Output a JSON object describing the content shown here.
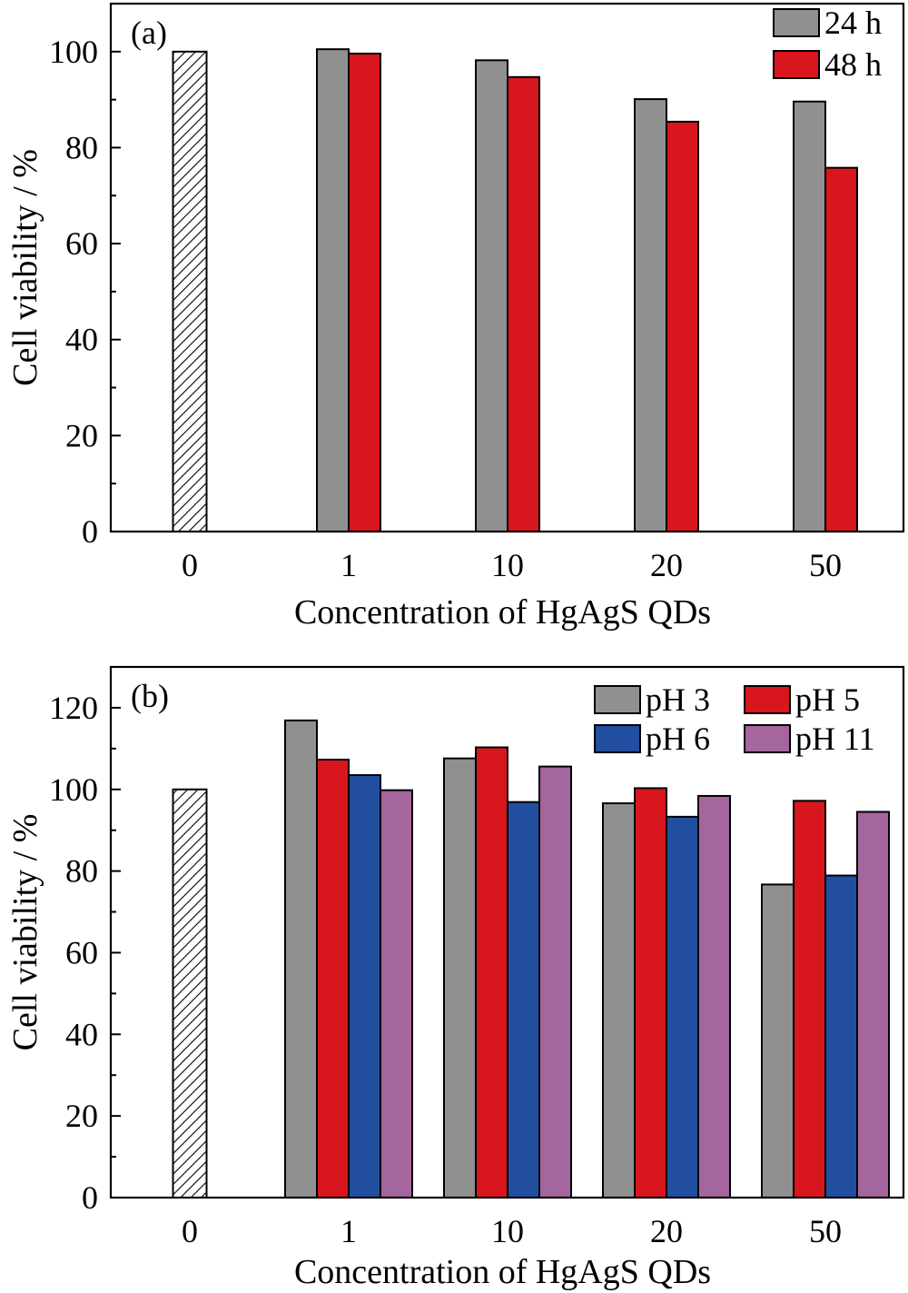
{
  "chart_data": [
    {
      "type": "bar",
      "panel_label": "(a)",
      "xlabel": "Concentration of HgAgS QDs",
      "ylabel": "Cell viability / %",
      "ylim": [
        0,
        110
      ],
      "yticks": [
        0,
        20,
        40,
        60,
        80,
        100
      ],
      "categories": [
        "0",
        "1",
        "10",
        "20",
        "50"
      ],
      "control": {
        "category": "0",
        "value": 100,
        "pattern": "hatched"
      },
      "legend_position": "top-right",
      "series": [
        {
          "name": "24 h",
          "color": "#909090",
          "values": [
            null,
            100.5,
            98.2,
            90.1,
            89.6
          ]
        },
        {
          "name": "48 h",
          "color": "#d7161d",
          "values": [
            null,
            99.6,
            94.7,
            85.4,
            75.8
          ]
        }
      ]
    },
    {
      "type": "bar",
      "panel_label": "(b)",
      "xlabel": "Concentration of HgAgS QDs",
      "ylabel": "Cell viability / %",
      "ylim": [
        0,
        130
      ],
      "yticks": [
        0,
        20,
        40,
        60,
        80,
        100,
        120
      ],
      "categories": [
        "0",
        "1",
        "10",
        "20",
        "50"
      ],
      "control": {
        "category": "0",
        "value": 100,
        "pattern": "hatched"
      },
      "legend_position": "top-right",
      "series": [
        {
          "name": "pH 3",
          "color": "#909090",
          "values": [
            null,
            116.9,
            107.6,
            96.6,
            76.7
          ]
        },
        {
          "name": "pH 5",
          "color": "#d7161d",
          "values": [
            null,
            107.3,
            110.3,
            100.3,
            97.2
          ]
        },
        {
          "name": "pH 6",
          "color": "#224e9f",
          "values": [
            null,
            103.5,
            96.9,
            93.3,
            78.9
          ]
        },
        {
          "name": "pH 11",
          "color": "#a5659d",
          "values": [
            null,
            99.8,
            105.6,
            98.4,
            94.5
          ]
        }
      ]
    }
  ]
}
